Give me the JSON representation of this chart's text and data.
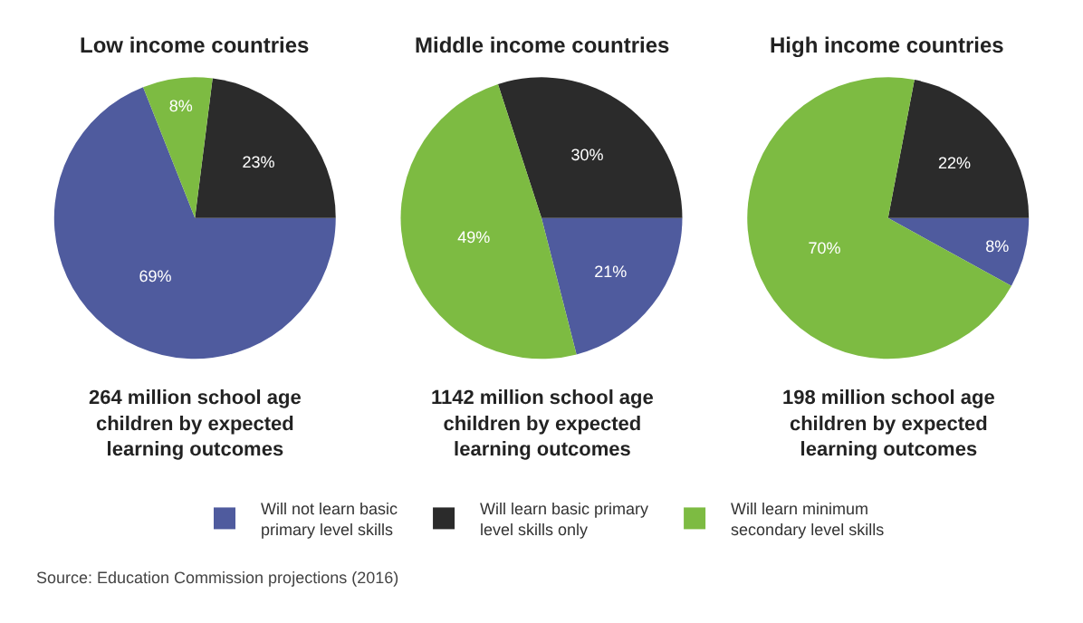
{
  "chart_data": [
    {
      "type": "pie",
      "title": "Low income countries",
      "subtitle": "264 million school age\nchildren by expected\nlearning outcomes",
      "categories": [
        "Will not learn basic\nprimary level skills",
        "Will learn basic primary\nlevel skills only",
        "Will learn minimum\nsecondary level skills"
      ],
      "values": [
        69,
        23,
        8
      ],
      "value_labels": [
        "69%",
        "23%",
        "8%"
      ],
      "colors": [
        "#4f5b9e",
        "#2b2b2b",
        "#7dbb42"
      ],
      "legend": "bottom",
      "annotations": [
        "Source: Education Commission projections (2016)"
      ]
    },
    {
      "type": "pie",
      "title": "Middle income countries",
      "subtitle": "1142 million school age\nchildren by expected\nlearning outcomes",
      "values": [
        21,
        30,
        49
      ],
      "value_labels": [
        "21%",
        "30%",
        "49%"
      ],
      "colors": [
        "#4f5b9e",
        "#2b2b2b",
        "#7dbb42"
      ]
    },
    {
      "type": "pie",
      "title": "High income countries",
      "subtitle": "198 million school age\nchildren by expected\nlearning outcomes",
      "values": [
        8,
        22,
        70
      ],
      "value_labels": [
        "8%",
        "22%",
        "70%"
      ],
      "colors": [
        "#4f5b9e",
        "#2b2b2b",
        "#7dbb42"
      ]
    }
  ]
}
